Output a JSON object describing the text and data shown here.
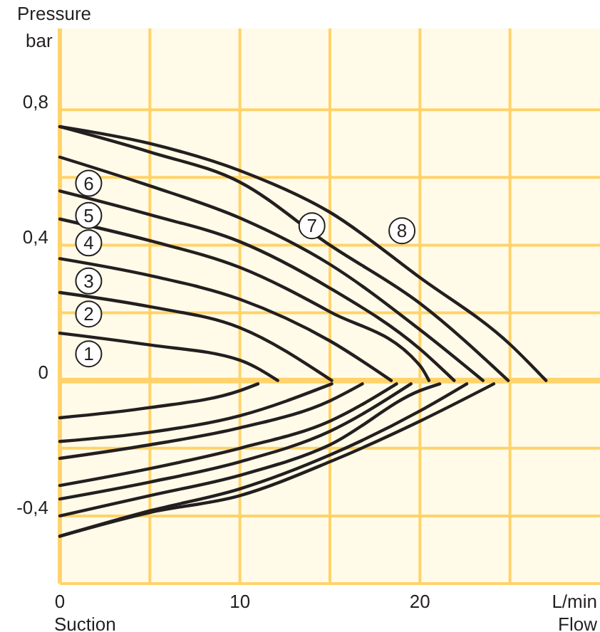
{
  "chart_data": {
    "type": "line",
    "ylabel": "Pressure\nbar",
    "xlabel": "L/min\nFlow",
    "annotations": [
      "Suction"
    ],
    "xlim": [
      0,
      30
    ],
    "ylim": [
      -0.6,
      1.04
    ],
    "xticks": [
      0,
      {
        "value": 5,
        "label": null
      },
      10,
      {
        "value": 15,
        "label": null
      },
      20,
      {
        "value": 25,
        "label": null
      }
    ],
    "yticks": [
      {
        "value": -0.6,
        "label": null
      },
      {
        "value": -0.4,
        "label": "-0,4"
      },
      {
        "value": -0.2,
        "label": null
      },
      0,
      {
        "value": 0.2,
        "label": null
      },
      {
        "value": 0.4,
        "label": "0,4"
      },
      {
        "value": 0.6,
        "label": null
      },
      {
        "value": 0.8,
        "label": "0,8"
      }
    ],
    "grid": true,
    "legend": "left",
    "ref_lines": [
      {
        "axis": "y",
        "value": 0,
        "color": "#ffd36b"
      }
    ],
    "marker": "none",
    "line_style": "solid",
    "series": [
      {
        "name": "1",
        "color": "#231f20",
        "x": [
          0,
          5,
          10,
          12.1,
          null,
          0,
          5,
          10,
          11
        ],
        "values": [
          0.14,
          0.105,
          0.06,
          0,
          null,
          -0.11,
          -0.08,
          -0.03,
          -0.01
        ]
      },
      {
        "name": "2",
        "color": "#231f20",
        "x": [
          0,
          5,
          10,
          15.1,
          null,
          0,
          5,
          10,
          15.1
        ],
        "values": [
          0.26,
          0.218,
          0.156,
          0,
          null,
          -0.18,
          -0.153,
          -0.104,
          -0.01
        ]
      },
      {
        "name": "3",
        "color": "#231f20",
        "x": [
          0,
          5,
          10,
          15,
          18.4,
          null,
          0,
          5,
          10,
          15,
          16.8
        ],
        "values": [
          0.36,
          0.31,
          0.24,
          0.117,
          0,
          null,
          -0.23,
          -0.19,
          -0.14,
          -0.06,
          -0.01
        ]
      },
      {
        "name": "4",
        "color": "#231f20",
        "x": [
          0,
          5,
          10,
          15,
          20,
          20.5,
          null,
          0,
          5,
          10,
          15,
          18.7
        ],
        "values": [
          0.477,
          0.413,
          0.334,
          0.203,
          0.044,
          0,
          null,
          -0.31,
          -0.26,
          -0.2,
          -0.12,
          -0.01
        ]
      },
      {
        "name": "5",
        "color": "#231f20",
        "x": [
          0,
          5,
          10,
          15,
          20,
          21.9,
          null,
          0,
          5,
          10,
          15,
          19.5
        ],
        "values": [
          0.56,
          0.49,
          0.41,
          0.273,
          0.093,
          0,
          null,
          -0.35,
          -0.3,
          -0.24,
          -0.15,
          -0.01
        ]
      },
      {
        "name": "6",
        "color": "#231f20",
        "x": [
          0,
          5,
          10,
          15,
          20,
          23.5,
          null,
          0,
          5,
          10,
          15,
          20,
          21.1
        ],
        "values": [
          0.66,
          0.575,
          0.48,
          0.343,
          0.15,
          0,
          null,
          -0.4,
          -0.34,
          -0.28,
          -0.19,
          -0.03,
          -0.01
        ]
      },
      {
        "name": "7",
        "color": "#231f20",
        "x": [
          0,
          5,
          10,
          15,
          20,
          24.9,
          null,
          0,
          5,
          10,
          15,
          20,
          22.6
        ],
        "values": [
          0.75,
          0.675,
          0.586,
          0.4,
          0.228,
          0,
          null,
          -0.46,
          -0.385,
          -0.32,
          -0.22,
          -0.09,
          -0.01
        ]
      },
      {
        "name": "8",
        "color": "#231f20",
        "x": [
          0,
          5,
          10,
          15,
          20,
          25,
          27,
          null,
          0,
          5,
          10,
          15,
          20,
          24.1
        ],
        "values": [
          0.75,
          0.7,
          0.62,
          0.497,
          0.304,
          0.107,
          0,
          null,
          -0.46,
          -0.39,
          -0.34,
          -0.24,
          -0.12,
          -0.01
        ]
      }
    ]
  }
}
